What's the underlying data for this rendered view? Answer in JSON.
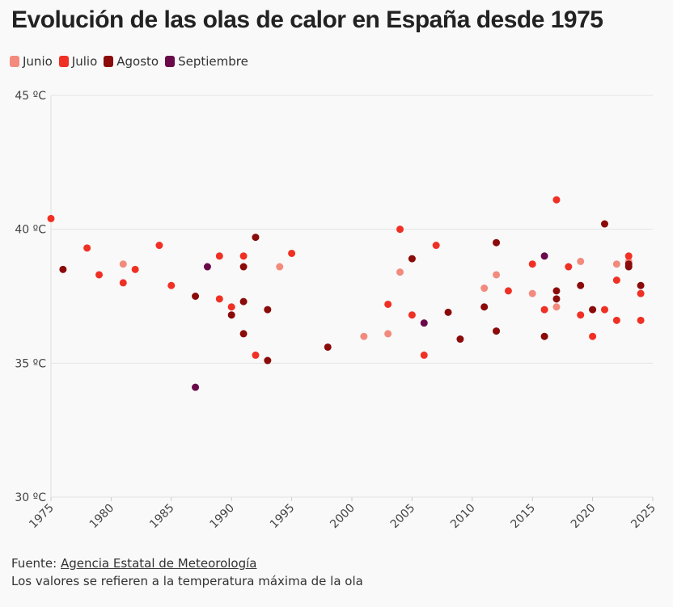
{
  "chart_data": {
    "type": "scatter",
    "title": "Evolución de las olas de calor en España desde 1975",
    "xlim": [
      1975,
      2025
    ],
    "xticks": [
      1975,
      1980,
      1985,
      1990,
      1995,
      2000,
      2005,
      2010,
      2015,
      2020,
      2025
    ],
    "ylim": [
      30,
      45
    ],
    "yticks": [
      {
        "value": 30,
        "label": "30 ºC"
      },
      {
        "value": 35,
        "label": "35 ºC"
      },
      {
        "value": 40,
        "label": "40 ºC"
      },
      {
        "value": 45,
        "label": "45 ºC"
      }
    ],
    "grid": true,
    "series": [
      {
        "name": "Junio",
        "color": "#f28b7d",
        "x": [
          1981,
          1994,
          2001,
          2003,
          2004,
          2011,
          2012,
          2015,
          2017,
          2019,
          2022,
          2023
        ],
        "values": [
          38.7,
          38.6,
          36.0,
          36.1,
          38.4,
          37.8,
          38.3,
          37.6,
          37.1,
          38.8,
          38.7,
          38.8
        ]
      },
      {
        "name": "Julio",
        "color": "#f03024",
        "x": [
          1975,
          1978,
          1979,
          1981,
          1982,
          1984,
          1985,
          1989,
          1989,
          1990,
          1991,
          1992,
          1995,
          2003,
          2004,
          2005,
          2006,
          2007,
          2013,
          2015,
          2016,
          2017,
          2018,
          2019,
          2020,
          2021,
          2022,
          2022,
          2023,
          2024,
          2024
        ],
        "values": [
          40.4,
          39.3,
          38.3,
          38.0,
          38.5,
          39.4,
          37.9,
          39.0,
          37.4,
          37.1,
          39.0,
          35.3,
          39.1,
          37.2,
          40.0,
          36.8,
          35.3,
          39.4,
          37.7,
          38.7,
          37.0,
          41.1,
          38.6,
          36.8,
          36.0,
          37.0,
          38.1,
          36.6,
          39.0,
          37.6,
          36.6
        ]
      },
      {
        "name": "Agosto",
        "color": "#8b0a0a",
        "x": [
          1976,
          1987,
          1990,
          1991,
          1991,
          1991,
          1992,
          1993,
          1993,
          1998,
          2005,
          2008,
          2009,
          2011,
          2012,
          2012,
          2016,
          2017,
          2017,
          2019,
          2020,
          2021,
          2023,
          2023,
          2024
        ],
        "values": [
          38.5,
          37.5,
          36.8,
          38.6,
          37.3,
          36.1,
          39.7,
          37.0,
          35.1,
          35.6,
          38.9,
          36.9,
          35.9,
          37.1,
          39.5,
          36.2,
          36.0,
          37.7,
          37.4,
          37.9,
          37.0,
          40.2,
          38.7,
          38.6,
          37.9
        ]
      },
      {
        "name": "Septiembre",
        "color": "#6b0a4a",
        "x": [
          1987,
          1988,
          2006,
          2016
        ],
        "values": [
          34.1,
          38.6,
          36.5,
          39.0
        ]
      }
    ]
  },
  "footer": {
    "source_label": "Fuente:",
    "source_link": "Agencia Estatal de Meteorología",
    "note": "Los valores se refieren a la temperatura máxima de la ola"
  }
}
